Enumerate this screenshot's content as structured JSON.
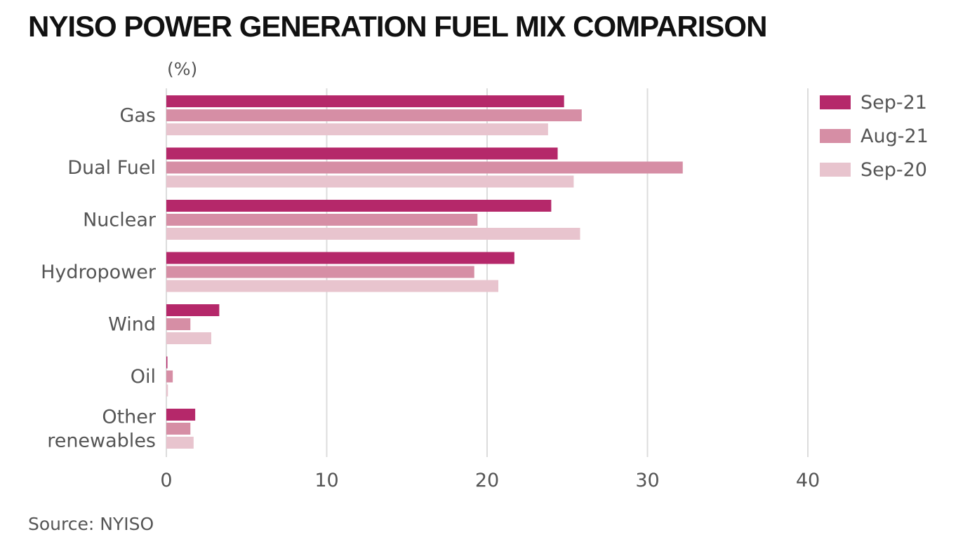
{
  "title": "NYISO POWER GENERATION FUEL MIX COMPARISON",
  "unit_label": "(%)",
  "source": "Source: NYISO",
  "chart_data": {
    "type": "bar",
    "orientation": "horizontal",
    "title": "NYISO POWER GENERATION FUEL MIX COMPARISON",
    "ylabel": "(%)",
    "xlabel": "",
    "categories": [
      [
        "Gas"
      ],
      [
        "Dual Fuel"
      ],
      [
        "Nuclear"
      ],
      [
        "Hydropower"
      ],
      [
        "Wind"
      ],
      [
        "Oil"
      ],
      [
        "Other",
        "renewables"
      ]
    ],
    "series": [
      {
        "name": "Sep-21",
        "color": "#b5286a",
        "values": [
          24.8,
          24.4,
          24.0,
          21.7,
          3.3,
          0.05,
          1.8
        ]
      },
      {
        "name": "Aug-21",
        "color": "#d68ea5",
        "values": [
          25.9,
          32.2,
          19.4,
          19.2,
          1.5,
          0.4,
          1.5
        ]
      },
      {
        "name": "Sep-20",
        "color": "#e8c4ce",
        "values": [
          23.8,
          25.4,
          25.8,
          20.7,
          2.8,
          0.1,
          1.7
        ]
      }
    ],
    "xlim": [
      0,
      40
    ],
    "xticks": [
      0,
      10,
      20,
      30,
      40
    ],
    "grid": true,
    "legend_position": "top-right"
  }
}
